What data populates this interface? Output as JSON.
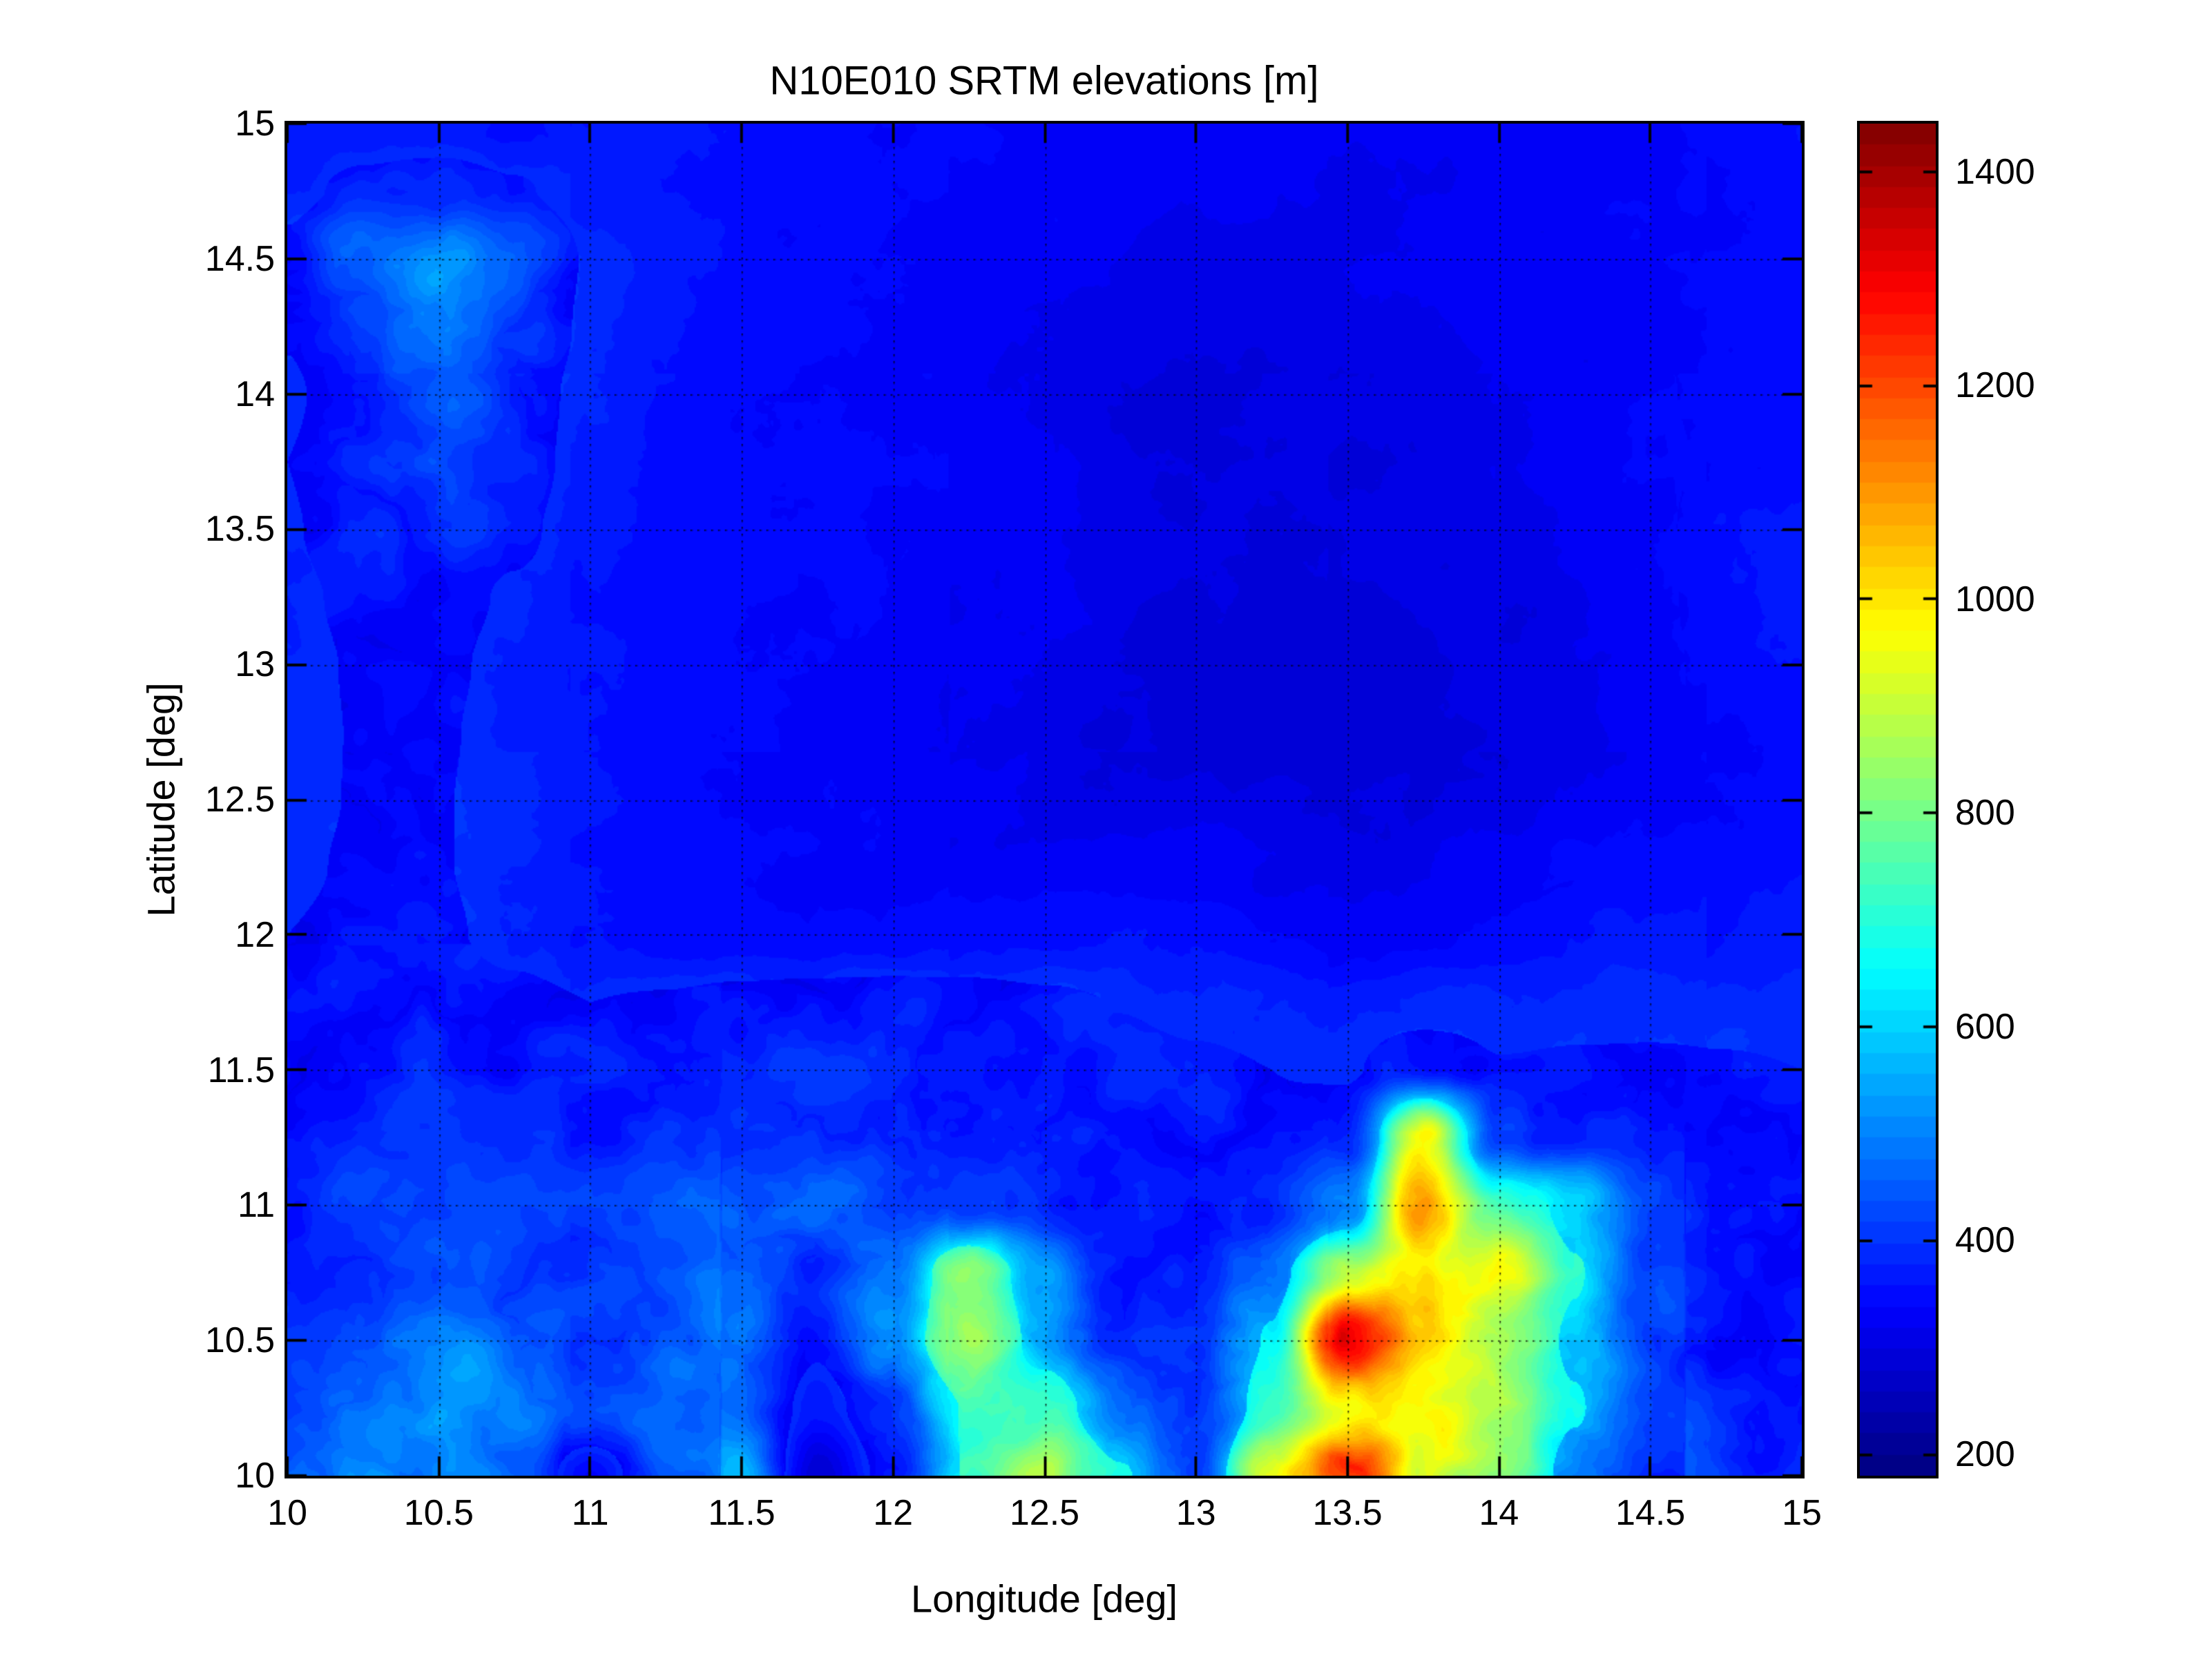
{
  "figure": {
    "background": "#ffffff",
    "axis_color": "#000000"
  },
  "chart_data": {
    "type": "heatmap",
    "title": "N10E010 SRTM elevations [m]",
    "xlabel": "Longitude [deg]",
    "ylabel": "Latitude [deg]",
    "x_range": [
      10,
      15
    ],
    "y_range": [
      10,
      15
    ],
    "x_ticks": [
      10,
      10.5,
      11,
      11.5,
      12,
      12.5,
      13,
      13.5,
      14,
      14.5,
      15
    ],
    "x_tick_labels": [
      "10",
      "10.5",
      "11",
      "11.5",
      "12",
      "12.5",
      "13",
      "13.5",
      "14",
      "14.5",
      "15"
    ],
    "y_ticks": [
      10,
      10.5,
      11,
      11.5,
      12,
      12.5,
      13,
      13.5,
      14,
      14.5,
      15
    ],
    "y_tick_labels": [
      "10",
      "10.5",
      "11",
      "11.5",
      "12",
      "12.5",
      "13",
      "13.5",
      "14",
      "14.5",
      "15"
    ],
    "grid": true,
    "grid_step_deg": 0.5,
    "colormap": "jet",
    "colorbar": {
      "tick_values": [
        200,
        400,
        600,
        800,
        1000,
        1200,
        1400
      ],
      "tick_labels": [
        "200",
        "400",
        "600",
        "800",
        "1000",
        "1200",
        "1400"
      ],
      "approx_range": [
        180,
        1445
      ],
      "levels": 64
    },
    "elevation_grid_m": {
      "units": "m",
      "lon_start": 10,
      "lon_step": 0.25,
      "lat_start": 15,
      "lat_step": -0.25,
      "values": [
        [
          360,
          370,
          365,
          360,
          355,
          350,
          345,
          345,
          342,
          340,
          338,
          335,
          333,
          330,
          330,
          330,
          334,
          338,
          342,
          348,
          352
        ],
        [
          380,
          400,
          415,
          395,
          370,
          355,
          350,
          346,
          344,
          340,
          337,
          333,
          330,
          328,
          326,
          326,
          330,
          334,
          338,
          344,
          348
        ],
        [
          400,
          480,
          545,
          465,
          385,
          360,
          350,
          346,
          344,
          340,
          335,
          330,
          325,
          321,
          319,
          320,
          325,
          330,
          335,
          340,
          345
        ],
        [
          395,
          465,
          520,
          450,
          380,
          358,
          349,
          344,
          339,
          334,
          328,
          323,
          316,
          312,
          309,
          312,
          318,
          324,
          330,
          338,
          344
        ],
        [
          382,
          430,
          462,
          420,
          374,
          354,
          347,
          341,
          336,
          330,
          324,
          316,
          308,
          303,
          300,
          303,
          311,
          319,
          327,
          337,
          343
        ],
        [
          390,
          438,
          468,
          415,
          370,
          352,
          344,
          339,
          334,
          327,
          319,
          309,
          299,
          294,
          292,
          295,
          304,
          314,
          324,
          335,
          341
        ],
        [
          386,
          420,
          432,
          400,
          367,
          350,
          342,
          337,
          331,
          324,
          314,
          304,
          295,
          290,
          287,
          291,
          299,
          311,
          323,
          348,
          358
        ],
        [
          381,
          400,
          406,
          385,
          362,
          347,
          339,
          334,
          329,
          321,
          311,
          300,
          292,
          287,
          284,
          289,
          297,
          309,
          321,
          350,
          362
        ],
        [
          378,
          394,
          398,
          378,
          359,
          345,
          337,
          332,
          327,
          319,
          309,
          298,
          290,
          285,
          283,
          287,
          295,
          307,
          319,
          344,
          356
        ],
        [
          380,
          392,
          394,
          375,
          357,
          344,
          335,
          330,
          325,
          317,
          309,
          299,
          292,
          288,
          286,
          290,
          298,
          309,
          320,
          338,
          348
        ],
        [
          382,
          392,
          392,
          374,
          356,
          343,
          334,
          329,
          325,
          319,
          313,
          307,
          308,
          304,
          295,
          297,
          305,
          315,
          326,
          340,
          348
        ],
        [
          385,
          394,
          392,
          374,
          356,
          344,
          336,
          332,
          330,
          328,
          330,
          334,
          328,
          316,
          306,
          310,
          318,
          328,
          338,
          348,
          354
        ],
        [
          390,
          398,
          396,
          378,
          360,
          350,
          345,
          345,
          348,
          352,
          355,
          357,
          350,
          338,
          328,
          333,
          340,
          348,
          356,
          362,
          366
        ],
        [
          400,
          408,
          412,
          400,
          390,
          394,
          404,
          409,
          411,
          407,
          397,
          389,
          381,
          375,
          371,
          373,
          377,
          381,
          383,
          383,
          382
        ],
        [
          410,
          418,
          428,
          418,
          413,
          423,
          438,
          443,
          438,
          428,
          413,
          403,
          396,
          390,
          386,
          420,
          392,
          394,
          394,
          392,
          390
        ],
        [
          430,
          445,
          452,
          435,
          425,
          432,
          447,
          450,
          445,
          435,
          420,
          410,
          400,
          395,
          420,
          1000,
          430,
          420,
          400,
          396,
          394
        ],
        [
          450,
          470,
          480,
          460,
          450,
          465,
          480,
          475,
          460,
          440,
          420,
          405,
          415,
          450,
          550,
          1100,
          750,
          600,
          430,
          400,
          390
        ],
        [
          460,
          480,
          500,
          480,
          465,
          480,
          500,
          420,
          520,
          750,
          560,
          430,
          450,
          600,
          850,
          950,
          900,
          650,
          450,
          410,
          395
        ],
        [
          470,
          500,
          530,
          500,
          470,
          490,
          520,
          400,
          550,
          780,
          600,
          450,
          480,
          650,
          1250,
          1000,
          800,
          620,
          450,
          410,
          400
        ],
        [
          480,
          520,
          540,
          510,
          480,
          500,
          480,
          360,
          450,
          650,
          700,
          550,
          470,
          700,
          900,
          900,
          800,
          650,
          480,
          430,
          410
        ],
        [
          500,
          540,
          520,
          480,
          330,
          480,
          560,
          280,
          420,
          650,
          800,
          650,
          500,
          900,
          1150,
          900,
          800,
          600,
          460,
          430,
          415
        ]
      ]
    }
  }
}
